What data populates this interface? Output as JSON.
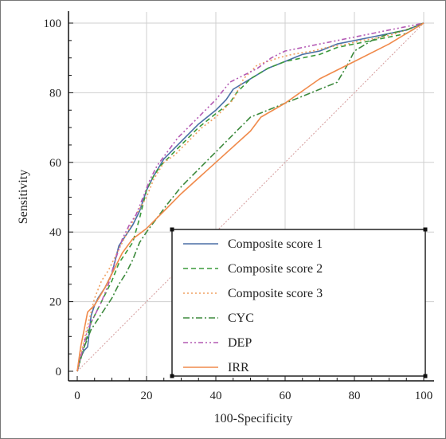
{
  "chart_data": {
    "type": "line",
    "title": "",
    "xlabel": "100-Specificity",
    "ylabel": "Sensitivity",
    "xlim": [
      0,
      100
    ],
    "ylim": [
      0,
      100
    ],
    "xticks": [
      0,
      20,
      40,
      60,
      80,
      100
    ],
    "yticks": [
      0,
      20,
      40,
      60,
      80,
      100
    ],
    "grid": true,
    "legend_position": "bottom-right",
    "reference_line": {
      "x": [
        0,
        100
      ],
      "y": [
        0,
        100
      ],
      "color": "#d49a9a"
    },
    "series": [
      {
        "name": "Composite score 1",
        "color": "#4a6fa5",
        "dash": "solid",
        "points": [
          [
            0,
            0
          ],
          [
            1,
            4
          ],
          [
            2,
            6
          ],
          [
            3,
            7
          ],
          [
            4,
            16
          ],
          [
            5,
            19
          ],
          [
            6,
            21
          ],
          [
            8,
            24
          ],
          [
            10,
            28
          ],
          [
            12,
            36
          ],
          [
            14,
            39
          ],
          [
            16,
            42
          ],
          [
            18,
            46
          ],
          [
            20,
            52
          ],
          [
            22,
            56
          ],
          [
            25,
            61
          ],
          [
            28,
            64
          ],
          [
            30,
            66
          ],
          [
            35,
            71
          ],
          [
            40,
            75
          ],
          [
            43,
            78
          ],
          [
            45,
            81
          ],
          [
            50,
            84
          ],
          [
            55,
            87
          ],
          [
            60,
            89
          ],
          [
            65,
            91
          ],
          [
            70,
            92
          ],
          [
            75,
            94
          ],
          [
            80,
            95
          ],
          [
            85,
            96
          ],
          [
            90,
            97
          ],
          [
            95,
            98
          ],
          [
            100,
            100
          ]
        ]
      },
      {
        "name": "Composite score 2",
        "color": "#3a9a3a",
        "dash": "6,4",
        "points": [
          [
            0,
            0
          ],
          [
            1,
            4
          ],
          [
            2,
            7
          ],
          [
            4,
            14
          ],
          [
            6,
            18
          ],
          [
            8,
            22
          ],
          [
            10,
            26
          ],
          [
            12,
            31
          ],
          [
            14,
            34
          ],
          [
            16,
            37
          ],
          [
            18,
            44
          ],
          [
            20,
            52
          ],
          [
            22,
            56
          ],
          [
            24,
            59
          ],
          [
            28,
            63
          ],
          [
            30,
            65
          ],
          [
            35,
            70
          ],
          [
            40,
            74
          ],
          [
            44,
            77
          ],
          [
            46,
            80
          ],
          [
            50,
            84
          ],
          [
            55,
            87
          ],
          [
            60,
            89
          ],
          [
            65,
            90
          ],
          [
            70,
            91
          ],
          [
            75,
            93
          ],
          [
            80,
            94
          ],
          [
            85,
            95
          ],
          [
            90,
            96
          ],
          [
            95,
            97
          ],
          [
            100,
            100
          ]
        ]
      },
      {
        "name": "Composite score 3",
        "color": "#f0a060",
        "dash": "2,3",
        "points": [
          [
            0,
            0
          ],
          [
            1,
            5
          ],
          [
            2,
            9
          ],
          [
            3,
            13
          ],
          [
            5,
            21
          ],
          [
            7,
            26
          ],
          [
            9,
            29
          ],
          [
            11,
            33
          ],
          [
            13,
            37
          ],
          [
            15,
            41
          ],
          [
            17,
            45
          ],
          [
            20,
            50
          ],
          [
            22,
            55
          ],
          [
            25,
            60
          ],
          [
            28,
            62
          ],
          [
            32,
            66
          ],
          [
            36,
            70
          ],
          [
            40,
            73
          ],
          [
            43,
            76
          ],
          [
            45,
            78
          ],
          [
            48,
            84
          ],
          [
            52,
            88
          ],
          [
            58,
            90
          ],
          [
            62,
            91
          ],
          [
            68,
            92
          ],
          [
            72,
            93
          ],
          [
            78,
            94
          ],
          [
            82,
            95
          ],
          [
            88,
            96
          ],
          [
            92,
            97
          ],
          [
            100,
            100
          ]
        ]
      },
      {
        "name": "CYC",
        "color": "#3d8a3d",
        "dash": "8,3,2,3",
        "points": [
          [
            0,
            0
          ],
          [
            2,
            7
          ],
          [
            4,
            12
          ],
          [
            6,
            15
          ],
          [
            8,
            18
          ],
          [
            10,
            21
          ],
          [
            12,
            25
          ],
          [
            14,
            28
          ],
          [
            16,
            32
          ],
          [
            18,
            37
          ],
          [
            20,
            40
          ],
          [
            23,
            44
          ],
          [
            26,
            48
          ],
          [
            30,
            53
          ],
          [
            35,
            58
          ],
          [
            40,
            63
          ],
          [
            45,
            68
          ],
          [
            50,
            73
          ],
          [
            55,
            75
          ],
          [
            60,
            77
          ],
          [
            65,
            79
          ],
          [
            70,
            81
          ],
          [
            75,
            83
          ],
          [
            78,
            88
          ],
          [
            80,
            92
          ],
          [
            85,
            95
          ],
          [
            90,
            97
          ],
          [
            95,
            98
          ],
          [
            100,
            100
          ]
        ]
      },
      {
        "name": "DEP",
        "color": "#b45ab4",
        "dash": "6,3,2,3,2,3",
        "points": [
          [
            0,
            0
          ],
          [
            1,
            4
          ],
          [
            2,
            8
          ],
          [
            3,
            12
          ],
          [
            5,
            16
          ],
          [
            7,
            20
          ],
          [
            9,
            25
          ],
          [
            11,
            32
          ],
          [
            13,
            38
          ],
          [
            15,
            42
          ],
          [
            17,
            45
          ],
          [
            19,
            50
          ],
          [
            21,
            55
          ],
          [
            23,
            59
          ],
          [
            26,
            63
          ],
          [
            29,
            67
          ],
          [
            32,
            70
          ],
          [
            36,
            74
          ],
          [
            40,
            78
          ],
          [
            44,
            83
          ],
          [
            48,
            85
          ],
          [
            52,
            87
          ],
          [
            56,
            90
          ],
          [
            60,
            92
          ],
          [
            65,
            93
          ],
          [
            70,
            94
          ],
          [
            75,
            95
          ],
          [
            80,
            96
          ],
          [
            85,
            97
          ],
          [
            90,
            98
          ],
          [
            95,
            99
          ],
          [
            100,
            100
          ]
        ]
      },
      {
        "name": "IRR",
        "color": "#f08a4b",
        "dash": "solid",
        "points": [
          [
            0,
            0
          ],
          [
            1,
            7
          ],
          [
            2,
            12
          ],
          [
            3,
            17
          ],
          [
            5,
            19
          ],
          [
            8,
            24
          ],
          [
            10,
            28
          ],
          [
            13,
            34
          ],
          [
            16,
            38
          ],
          [
            20,
            41
          ],
          [
            25,
            46
          ],
          [
            30,
            51
          ],
          [
            40,
            60
          ],
          [
            50,
            69
          ],
          [
            53,
            73
          ],
          [
            60,
            77
          ],
          [
            70,
            84
          ],
          [
            80,
            89
          ],
          [
            90,
            94
          ],
          [
            100,
            100
          ]
        ]
      }
    ]
  }
}
